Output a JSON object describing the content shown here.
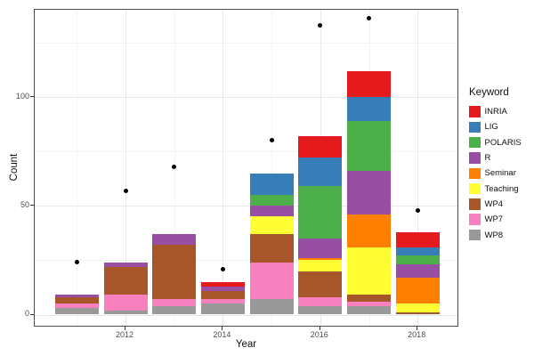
{
  "axes": {
    "x": {
      "label": "Year",
      "tick_labels": [
        "2012",
        "2014",
        "2016",
        "2018"
      ]
    },
    "y": {
      "label": "Count",
      "tick_labels": [
        "0",
        "50",
        "100"
      ]
    }
  },
  "legend": {
    "title": "Keyword",
    "items": [
      {
        "label": "INRIA",
        "color": "#E41A1C"
      },
      {
        "label": "LIG",
        "color": "#377EB8"
      },
      {
        "label": "POLARIS",
        "color": "#4DAF4A"
      },
      {
        "label": "R",
        "color": "#984EA3"
      },
      {
        "label": "Seminar",
        "color": "#FF7F00"
      },
      {
        "label": "Teaching",
        "color": "#FFFF33"
      },
      {
        "label": "WP4",
        "color": "#A65628"
      },
      {
        "label": "WP7",
        "color": "#F781BF"
      },
      {
        "label": "WP8",
        "color": "#999999"
      }
    ]
  },
  "chart_data": {
    "type": "bar",
    "stacked": true,
    "title": "",
    "xlabel": "Year",
    "ylabel": "Count",
    "categories": [
      2011,
      2012,
      2013,
      2014,
      2015,
      2016,
      2017,
      2018
    ],
    "x_major_ticks": [
      2012,
      2014,
      2016,
      2018
    ],
    "x_minor_ticks": [
      2011,
      2013,
      2015,
      2017
    ],
    "y_major_ticks": [
      0,
      50,
      100
    ],
    "y_minor_ticks": [
      25,
      75,
      125
    ],
    "ylim": [
      -6,
      140
    ],
    "grid": "on",
    "legend_position": "right",
    "series": [
      {
        "name": "INRIA",
        "color": "#E41A1C",
        "values": [
          0,
          0,
          0,
          2,
          0,
          10,
          12,
          7
        ]
      },
      {
        "name": "LIG",
        "color": "#377EB8",
        "values": [
          0,
          0,
          0,
          0,
          10,
          13,
          11,
          4
        ]
      },
      {
        "name": "POLARIS",
        "color": "#4DAF4A",
        "values": [
          0,
          0,
          0,
          0,
          5,
          24,
          23,
          4
        ]
      },
      {
        "name": "R",
        "color": "#984EA3",
        "values": [
          1,
          2,
          5,
          2,
          5,
          9,
          20,
          6
        ]
      },
      {
        "name": "Seminar",
        "color": "#FF7F00",
        "values": [
          0,
          0,
          0,
          0,
          0,
          1,
          15,
          12
        ]
      },
      {
        "name": "Teaching",
        "color": "#FFFF33",
        "values": [
          0,
          0,
          0,
          0,
          8,
          5,
          22,
          4
        ]
      },
      {
        "name": "WP4",
        "color": "#A65628",
        "values": [
          3,
          13,
          25,
          4,
          13,
          12,
          3,
          1
        ]
      },
      {
        "name": "WP7",
        "color": "#F781BF",
        "values": [
          2,
          7,
          3,
          2,
          17,
          4,
          2,
          0
        ]
      },
      {
        "name": "WP8",
        "color": "#999999",
        "values": [
          3,
          2,
          4,
          5,
          7,
          4,
          4,
          0
        ]
      }
    ],
    "bar_totals": [
      9,
      24,
      37,
      15,
      65,
      82,
      112,
      38
    ],
    "points": {
      "name": "points",
      "color": "#000000",
      "values": [
        24,
        57,
        68,
        21,
        80,
        133,
        136,
        48
      ]
    }
  }
}
